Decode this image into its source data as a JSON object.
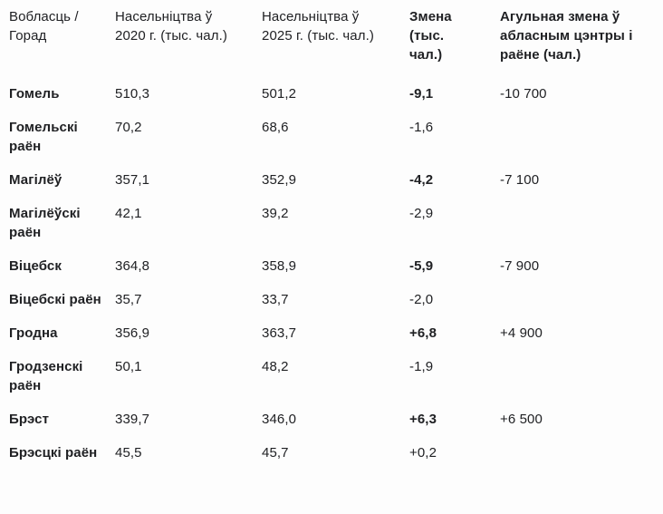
{
  "colors": {
    "text": "#202124",
    "background": "#fdfdfd"
  },
  "chart_data": {
    "type": "table",
    "columns": [
      {
        "label": "Вобласць / Горад",
        "bold": false
      },
      {
        "label": "Насельніцтва ў 2020 г. (тыс. чал.)",
        "bold": false
      },
      {
        "label": "Насельніцтва ў 2025 г. (тыс. чал.)",
        "bold": false
      },
      {
        "label": "Змена (тыс. чал.)",
        "bold": true
      },
      {
        "label": "Агульная змена ў абласным цэнтры і раёне (чал.)",
        "bold": true
      }
    ],
    "rows": [
      {
        "name": "Гомель",
        "pop_2020": "510,3",
        "pop_2025": "501,2",
        "change": "-9,1",
        "change_bold": true,
        "total_change": "-10 700"
      },
      {
        "name": "Гомельскі раён",
        "pop_2020": "70,2",
        "pop_2025": "68,6",
        "change": "-1,6",
        "change_bold": false,
        "total_change": ""
      },
      {
        "name": "Магілёў",
        "pop_2020": "357,1",
        "pop_2025": "352,9",
        "change": "-4,2",
        "change_bold": true,
        "total_change": "-7 100"
      },
      {
        "name": "Магілёўскі раён",
        "pop_2020": "42,1",
        "pop_2025": "39,2",
        "change": "-2,9",
        "change_bold": false,
        "total_change": ""
      },
      {
        "name": "Віцебск",
        "pop_2020": "364,8",
        "pop_2025": "358,9",
        "change": "-5,9",
        "change_bold": true,
        "total_change": "-7 900"
      },
      {
        "name": "Віцебскі раён",
        "pop_2020": "35,7",
        "pop_2025": "33,7",
        "change": "-2,0",
        "change_bold": false,
        "total_change": ""
      },
      {
        "name": "Гродна",
        "pop_2020": "356,9",
        "pop_2025": "363,7",
        "change": "+6,8",
        "change_bold": true,
        "total_change": "+4 900"
      },
      {
        "name": "Гродзенскі раён",
        "pop_2020": "50,1",
        "pop_2025": "48,2",
        "change": "-1,9",
        "change_bold": false,
        "total_change": ""
      },
      {
        "name": "Брэст",
        "pop_2020": "339,7",
        "pop_2025": "346,0",
        "change": "+6,3",
        "change_bold": true,
        "total_change": "+6 500"
      },
      {
        "name": "Брэсцкі раён",
        "pop_2020": "45,5",
        "pop_2025": "45,7",
        "change": "+0,2",
        "change_bold": false,
        "total_change": ""
      }
    ]
  }
}
